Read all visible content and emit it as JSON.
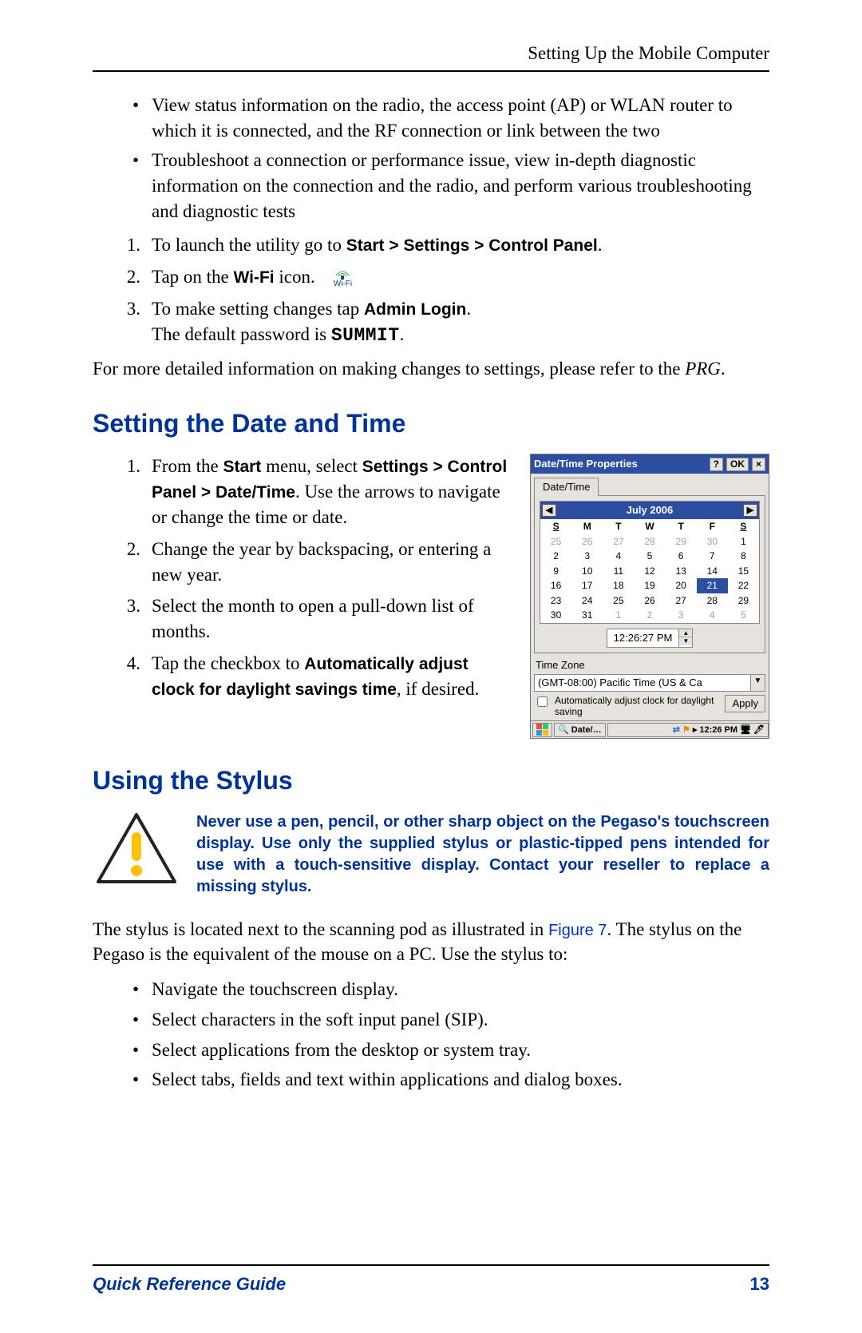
{
  "header": {
    "running_title": "Setting Up the Mobile Computer"
  },
  "intro_bullets": [
    "View status information on the radio, the access point (AP) or WLAN router to which it is connected, and the RF connection or link between the two",
    "Troubleshoot a connection or performance issue, view in-depth diagnostic information on the connection and the radio, and perform various troubleshooting and diagnostic tests"
  ],
  "steps1": {
    "s1a": "To launch the utility go to ",
    "s1b": "Start > Settings > Control Panel",
    "s1c": ".",
    "s2a": "Tap on the ",
    "s2b": "Wi-Fi",
    "s2c": " icon.",
    "s2_icon_label": "Wi-Fi",
    "s3a": "To make setting changes tap ",
    "s3b": "Admin Login",
    "s3c": ".",
    "s3d": "The default password is ",
    "s3e": "SUMMIT",
    "s3f": "."
  },
  "more_info_a": "For more detailed information on making changes to settings, please refer to the ",
  "more_info_b": "PRG",
  "more_info_c": ".",
  "h2_datetime": "Setting the Date and Time",
  "dt_steps": {
    "s1a": "From the ",
    "s1b": "Start",
    "s1c": " menu, select ",
    "s1d": "Settings > Control Panel > Date/Time",
    "s1e": ". Use the arrows to navigate or change the time or date.",
    "s2": "Change the year by backspacing, or entering a new year.",
    "s3": "Select the month to open a pull-down list of months.",
    "s4a": "Tap the checkbox to ",
    "s4b": "Automatically adjust clock for daylight savings time",
    "s4c": ", if desired."
  },
  "datetime_window": {
    "title": "Date/Time Properties",
    "help_btn": "?",
    "ok_btn": "OK",
    "close_btn": "×",
    "tab": "Date/Time",
    "prev": "◀",
    "next": "▶",
    "month_label": "July 2006",
    "day_headers": [
      "S",
      "M",
      "T",
      "W",
      "T",
      "F",
      "S"
    ],
    "day_header_underline_idx": [
      0,
      6
    ],
    "weeks": [
      [
        {
          "d": "25",
          "dim": true
        },
        {
          "d": "26",
          "dim": true
        },
        {
          "d": "27",
          "dim": true
        },
        {
          "d": "28",
          "dim": true
        },
        {
          "d": "29",
          "dim": true
        },
        {
          "d": "30",
          "dim": true
        },
        {
          "d": "1"
        }
      ],
      [
        {
          "d": "2"
        },
        {
          "d": "3"
        },
        {
          "d": "4"
        },
        {
          "d": "5"
        },
        {
          "d": "6"
        },
        {
          "d": "7"
        },
        {
          "d": "8"
        }
      ],
      [
        {
          "d": "9"
        },
        {
          "d": "10"
        },
        {
          "d": "11"
        },
        {
          "d": "12"
        },
        {
          "d": "13"
        },
        {
          "d": "14"
        },
        {
          "d": "15"
        }
      ],
      [
        {
          "d": "16"
        },
        {
          "d": "17"
        },
        {
          "d": "18"
        },
        {
          "d": "19"
        },
        {
          "d": "20"
        },
        {
          "d": "21",
          "sel": true
        },
        {
          "d": "22"
        }
      ],
      [
        {
          "d": "23"
        },
        {
          "d": "24"
        },
        {
          "d": "25"
        },
        {
          "d": "26"
        },
        {
          "d": "27"
        },
        {
          "d": "28"
        },
        {
          "d": "29"
        }
      ],
      [
        {
          "d": "30"
        },
        {
          "d": "31"
        },
        {
          "d": "1",
          "dim": true
        },
        {
          "d": "2",
          "dim": true
        },
        {
          "d": "3",
          "dim": true
        },
        {
          "d": "4",
          "dim": true
        },
        {
          "d": "5",
          "dim": true
        }
      ]
    ],
    "time_value": "12:26:27 PM",
    "tz_label": "Time Zone",
    "tz_value": "(GMT-08:00) Pacific Time (US & Ca",
    "auto_adjust": "Automatically adjust clock for daylight saving",
    "apply": "Apply",
    "taskbar_app": "Date/…",
    "taskbar_time": "12:26 PM"
  },
  "h2_stylus": "Using the Stylus",
  "warning_text": "Never use a pen, pencil, or other sharp object on the Pegaso's touchscreen display. Use only the supplied stylus or plastic-tipped pens intended for use with a touch-sensitive display. Contact your reseller to replace a missing stylus.",
  "stylus_para_a": "The stylus is located next to the scanning pod as illustrated in ",
  "stylus_para_b": "Figure 7",
  "stylus_para_c": ". The stylus on the Pegaso is the equivalent of the mouse on a PC. Use the stylus to:",
  "stylus_bullets": [
    "Navigate the touchscreen display.",
    "Select characters in the soft input panel (SIP).",
    "Select applications from the desktop or system tray.",
    "Select tabs, fields and text within applications and dialog boxes."
  ],
  "footer": {
    "guide": "Quick Reference Guide",
    "page": "13"
  },
  "colors": {
    "heading_blue": "#003399",
    "link_blue": "#0033cc",
    "title_bar_blue": "#2b4ea0",
    "warning_yellow": "#ffc107",
    "warning_stroke": "#222222"
  }
}
